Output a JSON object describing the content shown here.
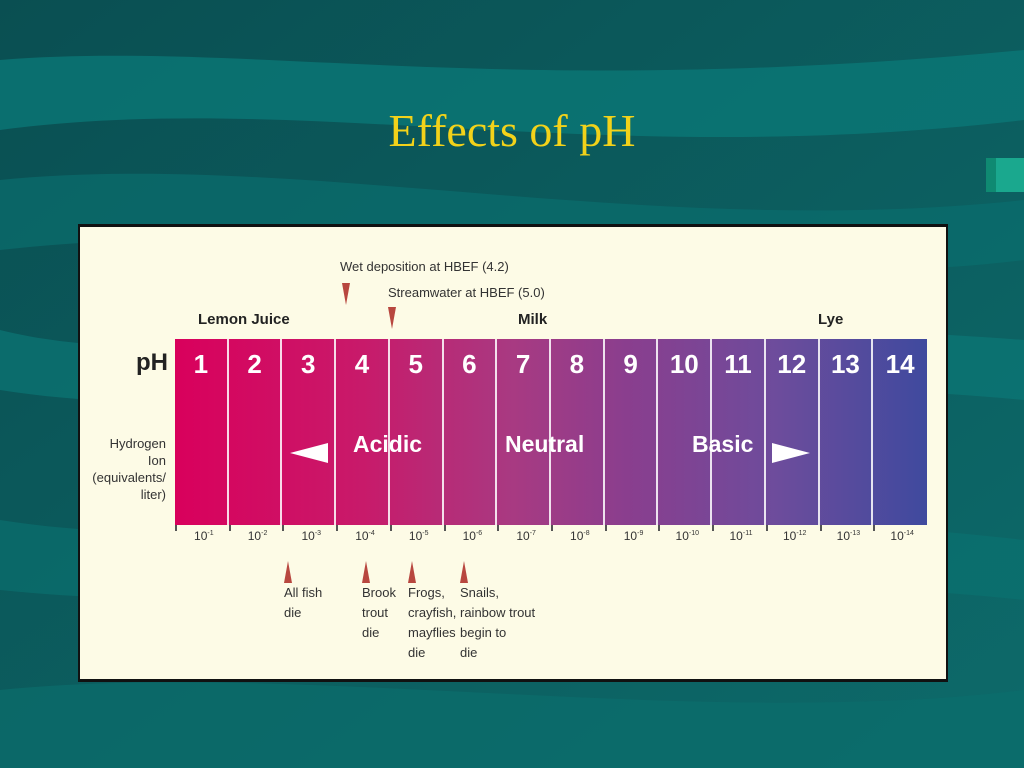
{
  "slide": {
    "title": "Effects of pH"
  },
  "diagram": {
    "annotations": {
      "wet_deposition": "Wet deposition at HBEF (4.2)",
      "streamwater": "Streamwater at HBEF (5.0)"
    },
    "substances": {
      "lemon_juice": "Lemon Juice",
      "milk": "Milk",
      "lye": "Lye"
    },
    "row_labels": {
      "ph": "pH",
      "hydrogen": "Hydrogen\nIon\n(equivalents/\nliter)"
    },
    "ph_values": [
      "1",
      "2",
      "3",
      "4",
      "5",
      "6",
      "7",
      "8",
      "9",
      "10",
      "11",
      "12",
      "13",
      "14"
    ],
    "zones": {
      "acidic": "Acidic",
      "neutral": "Neutral",
      "basic": "Basic"
    },
    "hydrogen_exponents": [
      "-1",
      "-2",
      "-3",
      "-4",
      "-5",
      "-6",
      "-7",
      "-8",
      "-9",
      "-10",
      "-11",
      "-12",
      "-13",
      "-14"
    ],
    "hydrogen_base": "10",
    "effects": {
      "fish": "All fish\ndie",
      "brook_trout": "Brook\ntrout\ndie",
      "frogs": "Frogs,\ncrayfish,\nmayflies\ndie",
      "snails": "Snails,\nrainbow trout\nbegin to\ndie"
    },
    "colors": {
      "acid": "#d9005c",
      "base": "#3f4a9e",
      "marker": "#b8473f",
      "title": "#f2d21a"
    }
  }
}
